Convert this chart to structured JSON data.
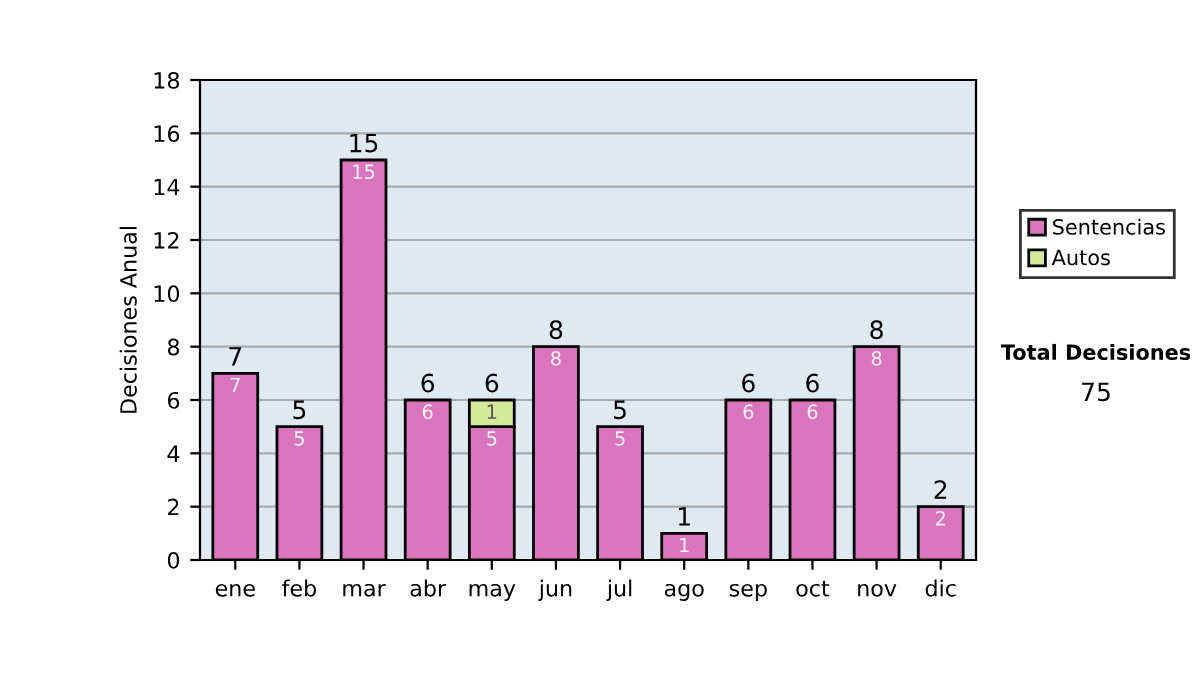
{
  "chart_data": {
    "type": "bar",
    "stacked": true,
    "ylabel": "Decisiones Anual",
    "categories": [
      "ene",
      "feb",
      "mar",
      "abr",
      "may",
      "jun",
      "jul",
      "ago",
      "sep",
      "oct",
      "nov",
      "dic"
    ],
    "series": [
      {
        "name": "Sentencias",
        "color": "#da74bc",
        "values": [
          7,
          5,
          15,
          6,
          5,
          8,
          5,
          1,
          6,
          6,
          8,
          2
        ]
      },
      {
        "name": "Autos",
        "color": "#d4ec9a",
        "values": [
          null,
          null,
          null,
          null,
          1,
          null,
          null,
          null,
          null,
          null,
          null,
          null
        ]
      }
    ],
    "ylim": [
      0,
      18
    ],
    "yticks": [
      0,
      2,
      4,
      6,
      8,
      10,
      12,
      14,
      16,
      18
    ],
    "grid": "y",
    "legend": "right",
    "data_labels": true,
    "totals": [
      "7",
      "5",
      "15",
      "6",
      "6",
      "8",
      "5",
      "1",
      "6",
      "6",
      "8",
      "2"
    ],
    "annotations": [
      "Total Decisiones",
      "75"
    ]
  }
}
